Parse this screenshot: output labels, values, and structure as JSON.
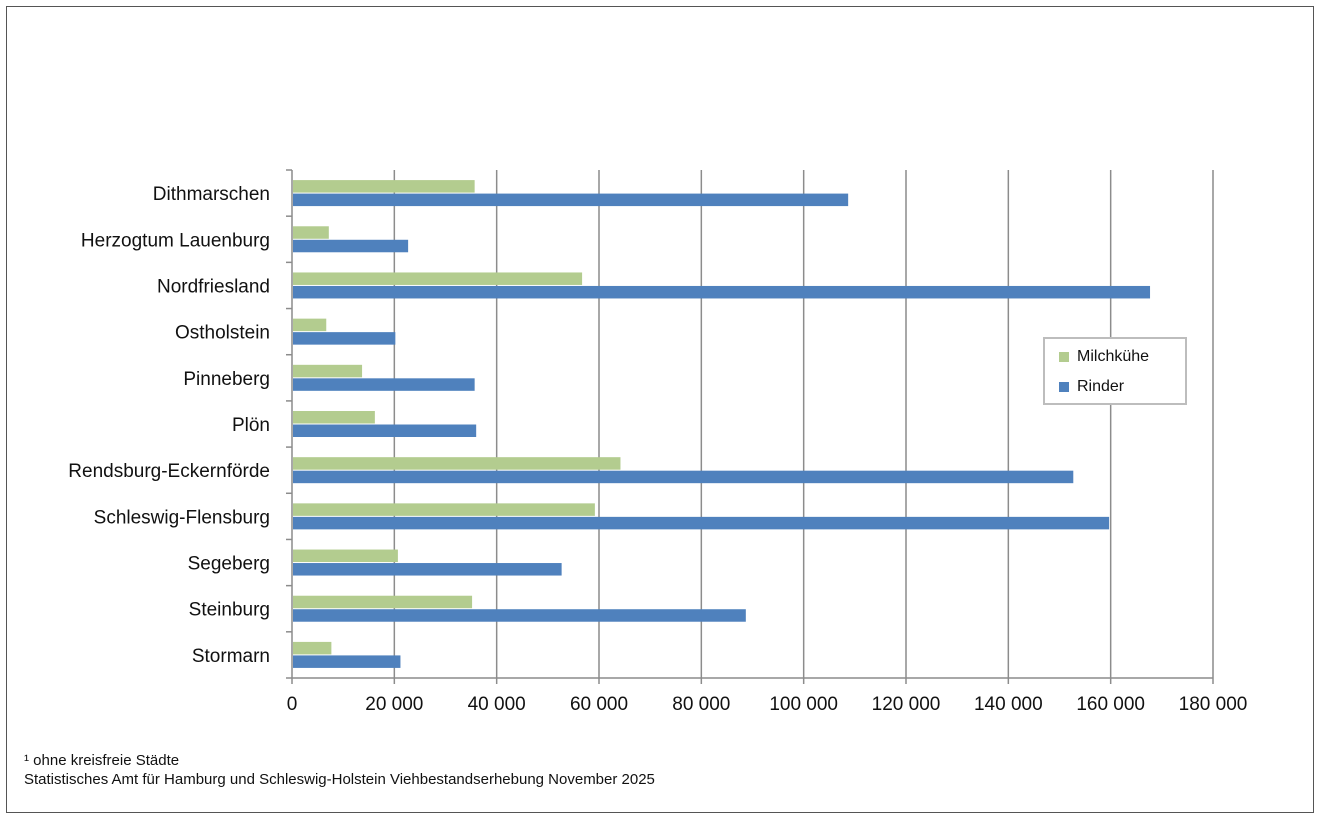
{
  "chart_data": {
    "type": "bar",
    "orientation": "horizontal",
    "categories": [
      "Dithmarschen",
      "Herzogtum Lauenburg",
      "Nordfriesland",
      "Ostholstein",
      "Pinneberg",
      "Plön",
      "Rendsburg-Eckernförde",
      "Schleswig-Flensburg",
      "Segeberg",
      "Steinburg",
      "Stormarn"
    ],
    "series": [
      {
        "name": "Milchkühe",
        "color": "#b3cc8f",
        "values": [
          35500,
          7000,
          56500,
          6500,
          13500,
          16000,
          64000,
          59000,
          20500,
          35000,
          7500
        ]
      },
      {
        "name": "Rinder",
        "color": "#4f81bd",
        "values": [
          108500,
          22500,
          167500,
          20000,
          35500,
          35800,
          152500,
          159500,
          52500,
          88500,
          21000
        ]
      }
    ],
    "x_ticks": [
      "0",
      "20 000",
      "40 000",
      "60 000",
      "80 000",
      "100 000",
      "120 000",
      "140 000",
      "160 000",
      "180 000"
    ],
    "xlim": [
      0,
      180000
    ],
    "grid": "vertical",
    "legend_position": "right",
    "title": "",
    "xlabel": "",
    "ylabel": ""
  },
  "footnote": {
    "line1": "¹ ohne kreisfreie Städte",
    "line2": "Statistisches Amt für Hamburg und Schleswig-Holstein Viehbestandserhebung November 2025"
  }
}
